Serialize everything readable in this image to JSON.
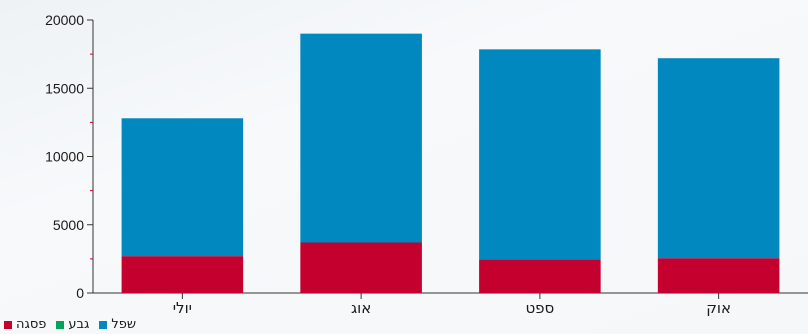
{
  "chart_data": {
    "type": "bar",
    "stacked": true,
    "categories": [
      "יולי",
      "אוג",
      "ספט",
      "אוק"
    ],
    "series": [
      {
        "name": "פסגה",
        "color": "#c4002f",
        "values": [
          2700,
          3700,
          2450,
          2550
        ]
      },
      {
        "name": "גבע",
        "color": "#00a35c",
        "values": [
          0,
          0,
          0,
          0
        ]
      },
      {
        "name": "שפל",
        "color": "#0088bf",
        "values": [
          10100,
          15300,
          15400,
          14650
        ]
      }
    ],
    "yticks": [
      "0",
      "5000",
      "10000",
      "15000",
      "20000"
    ],
    "ylim": [
      0,
      20000
    ],
    "grid": false,
    "legend_position": "bottom-left"
  }
}
